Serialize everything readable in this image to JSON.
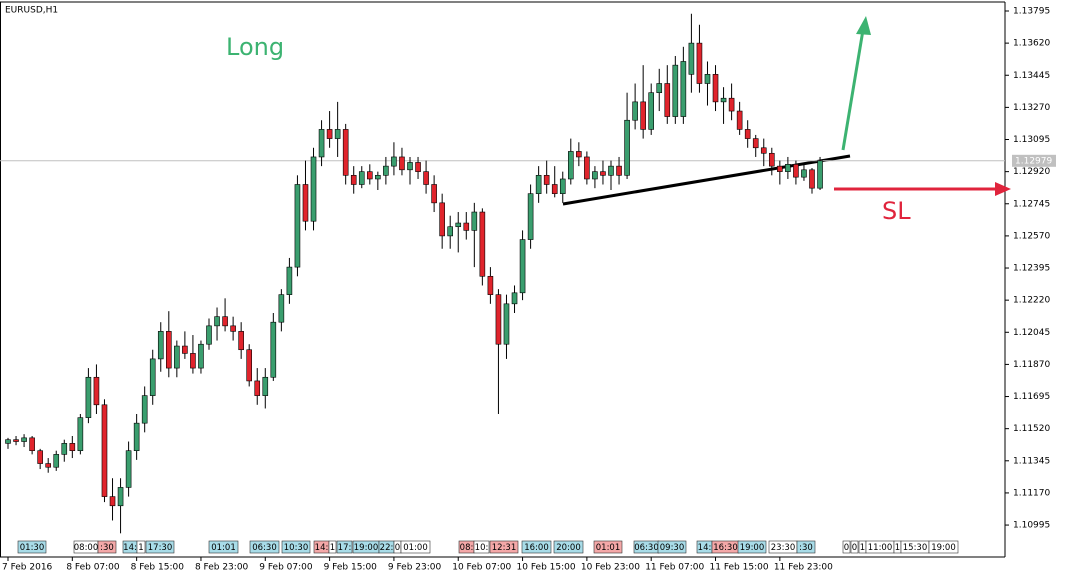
{
  "chart_data": {
    "type": "candlestick",
    "title": "EURUSD,H1",
    "up_color": "#3a9e6e",
    "down_color": "#e0242c",
    "wick_color": "#000000",
    "ylim": [
      1.10821,
      1.13844
    ],
    "yticks": [
      {
        "value": 1.13795,
        "label": "1.13795"
      },
      {
        "value": 1.1362,
        "label": "1.13620"
      },
      {
        "value": 1.13445,
        "label": "1.13445"
      },
      {
        "value": 1.1327,
        "label": "1.13270"
      },
      {
        "value": 1.13095,
        "label": "1.13095"
      },
      {
        "value": 1.1292,
        "label": "1.12920"
      },
      {
        "value": 1.12745,
        "label": "1.12745"
      },
      {
        "value": 1.1257,
        "label": "1.12570"
      },
      {
        "value": 1.12395,
        "label": "1.12395"
      },
      {
        "value": 1.1222,
        "label": "1.12220"
      },
      {
        "value": 1.12045,
        "label": "1.12045"
      },
      {
        "value": 1.1187,
        "label": "1.11870"
      },
      {
        "value": 1.11695,
        "label": "1.11695"
      },
      {
        "value": 1.1152,
        "label": "1.11520"
      },
      {
        "value": 1.11345,
        "label": "1.11345"
      },
      {
        "value": 1.1117,
        "label": "1.11170"
      },
      {
        "value": 1.10995,
        "label": "1.10995"
      }
    ],
    "xticks": [
      {
        "value": 0,
        "label": "7 Feb 2016"
      },
      {
        "value": 8,
        "label": "8 Feb 07:00"
      },
      {
        "value": 16,
        "label": "8 Feb 15:00"
      },
      {
        "value": 24,
        "label": "8 Feb 23:00"
      },
      {
        "value": 32,
        "label": "9 Feb 07:00"
      },
      {
        "value": 40,
        "label": "9 Feb 15:00"
      },
      {
        "value": 48,
        "label": "9 Feb 23:00"
      },
      {
        "value": 56,
        "label": "10 Feb 07:00"
      },
      {
        "value": 64,
        "label": "10 Feb 15:00"
      },
      {
        "value": 72,
        "label": "10 Feb 23:00"
      },
      {
        "value": 80,
        "label": "11 Feb 07:00"
      },
      {
        "value": 88,
        "label": "11 Feb 15:00"
      },
      {
        "value": 96,
        "label": "11 Feb 23:00"
      }
    ],
    "current_price": 1.12979,
    "annotations": [
      {
        "text": "Long",
        "color": "#3cb371"
      },
      {
        "text": "SL",
        "color": "#e0243c"
      }
    ],
    "events": [
      {
        "label": "01:30",
        "color": "#a8dce8"
      },
      {
        "label": "08:00",
        "color": "#ffffff"
      },
      {
        "label": ":30",
        "color": "#f4a8a8"
      },
      {
        "label": "14:",
        "color": "#a8dce8"
      },
      {
        "label": "1",
        "color": "#ffffff"
      },
      {
        "label": "17:30",
        "color": "#a8dce8"
      },
      {
        "label": "01:01",
        "color": "#a8dce8"
      },
      {
        "label": "06:30",
        "color": "#a8dce8"
      },
      {
        "label": "10:30",
        "color": "#a8dce8"
      },
      {
        "label": "14:",
        "color": "#f4a8a8"
      },
      {
        "label": "1",
        "color": "#ffffff"
      },
      {
        "label": "17:",
        "color": "#a8dce8"
      },
      {
        "label": "19:00",
        "color": "#a8dce8"
      },
      {
        "label": "22:",
        "color": "#a8dce8"
      },
      {
        "label": "0",
        "color": "#ffffff"
      },
      {
        "label": "01:00",
        "color": "#ffffff"
      },
      {
        "label": "08:",
        "color": "#f4a8a8"
      },
      {
        "label": "10:",
        "color": "#ffffff"
      },
      {
        "label": "12:31",
        "color": "#f4a8a8"
      },
      {
        "label": "16:00",
        "color": "#a8dce8"
      },
      {
        "label": "20:00",
        "color": "#a8dce8"
      },
      {
        "label": "01:01",
        "color": "#f4a8a8"
      },
      {
        "label": "06:30",
        "color": "#a8dce8"
      },
      {
        "label": "09:30",
        "color": "#a8dce8"
      },
      {
        "label": "14:",
        "color": "#a8dce8"
      },
      {
        "label": "16:30",
        "color": "#f4a8a8"
      },
      {
        "label": "19:00",
        "color": "#a8dce8"
      },
      {
        "label": "23:30",
        "color": "#ffffff"
      },
      {
        "label": ":30",
        "color": "#a8dce8"
      },
      {
        "label": "0",
        "color": "#ffffff"
      },
      {
        "label": "0",
        "color": "#ffffff"
      },
      {
        "label": "1",
        "color": "#ffffff"
      },
      {
        "label": "11:00",
        "color": "#ffffff"
      },
      {
        "label": "1",
        "color": "#ffffff"
      },
      {
        "label": "15:30",
        "color": "#ffffff"
      },
      {
        "label": "19:00",
        "color": "#ffffff"
      }
    ],
    "ohlc": [
      [
        1.1144,
        1.1147,
        1.1141,
        1.1146
      ],
      [
        1.1146,
        1.1148,
        1.1143,
        1.1145
      ],
      [
        1.1145,
        1.1149,
        1.1142,
        1.1147
      ],
      [
        1.1147,
        1.1148,
        1.1138,
        1.114
      ],
      [
        1.114,
        1.1141,
        1.113,
        1.1133
      ],
      [
        1.1133,
        1.1136,
        1.1128,
        1.1131
      ],
      [
        1.1131,
        1.114,
        1.1129,
        1.1138
      ],
      [
        1.1138,
        1.1146,
        1.1134,
        1.1144
      ],
      [
        1.1144,
        1.1148,
        1.1136,
        1.114
      ],
      [
        1.114,
        1.116,
        1.1138,
        1.1158
      ],
      [
        1.1158,
        1.1185,
        1.1155,
        1.118
      ],
      [
        1.118,
        1.1187,
        1.116,
        1.1165
      ],
      [
        1.1165,
        1.1168,
        1.1112,
        1.1115
      ],
      [
        1.1115,
        1.1125,
        1.1102,
        1.111
      ],
      [
        1.111,
        1.1125,
        1.1095,
        1.112
      ],
      [
        1.112,
        1.1145,
        1.1115,
        1.114
      ],
      [
        1.114,
        1.116,
        1.1135,
        1.1155
      ],
      [
        1.1155,
        1.1175,
        1.115,
        1.117
      ],
      [
        1.117,
        1.1195,
        1.1165,
        1.119
      ],
      [
        1.119,
        1.121,
        1.1183,
        1.1205
      ],
      [
        1.1205,
        1.1216,
        1.118,
        1.1185
      ],
      [
        1.1185,
        1.12,
        1.118,
        1.1197
      ],
      [
        1.1197,
        1.1205,
        1.119,
        1.1193
      ],
      [
        1.1193,
        1.1203,
        1.1182,
        1.1185
      ],
      [
        1.1185,
        1.12,
        1.1182,
        1.1198
      ],
      [
        1.1198,
        1.1212,
        1.1195,
        1.1208
      ],
      [
        1.1208,
        1.1218,
        1.12,
        1.1213
      ],
      [
        1.1213,
        1.1223,
        1.1205,
        1.1208
      ],
      [
        1.1208,
        1.1213,
        1.12,
        1.1205
      ],
      [
        1.1205,
        1.121,
        1.119,
        1.1195
      ],
      [
        1.1195,
        1.1198,
        1.1175,
        1.1178
      ],
      [
        1.1178,
        1.1185,
        1.1165,
        1.117
      ],
      [
        1.117,
        1.1185,
        1.1163,
        1.118
      ],
      [
        1.118,
        1.1215,
        1.1178,
        1.121
      ],
      [
        1.121,
        1.1228,
        1.1205,
        1.1225
      ],
      [
        1.1225,
        1.1245,
        1.122,
        1.124
      ],
      [
        1.124,
        1.129,
        1.1235,
        1.1285
      ],
      [
        1.1285,
        1.1298,
        1.126,
        1.1265
      ],
      [
        1.1265,
        1.1305,
        1.126,
        1.13
      ],
      [
        1.13,
        1.132,
        1.1295,
        1.1315
      ],
      [
        1.1315,
        1.1325,
        1.1305,
        1.131
      ],
      [
        1.131,
        1.133,
        1.13,
        1.1315
      ],
      [
        1.1315,
        1.1318,
        1.1285,
        1.129
      ],
      [
        1.129,
        1.1295,
        1.128,
        1.1285
      ],
      [
        1.1285,
        1.1295,
        1.1283,
        1.1292
      ],
      [
        1.1292,
        1.1296,
        1.1285,
        1.1288
      ],
      [
        1.1288,
        1.1292,
        1.1282,
        1.129
      ],
      [
        1.129,
        1.13,
        1.1285,
        1.1295
      ],
      [
        1.1295,
        1.1308,
        1.129,
        1.13
      ],
      [
        1.13,
        1.1305,
        1.129,
        1.1293
      ],
      [
        1.1293,
        1.13,
        1.1285,
        1.1297
      ],
      [
        1.1297,
        1.13,
        1.1288,
        1.1292
      ],
      [
        1.1292,
        1.1298,
        1.128,
        1.1285
      ],
      [
        1.1285,
        1.129,
        1.127,
        1.1275
      ],
      [
        1.1275,
        1.128,
        1.125,
        1.1257
      ],
      [
        1.1257,
        1.1268,
        1.125,
        1.1262
      ],
      [
        1.1262,
        1.127,
        1.1248,
        1.1264
      ],
      [
        1.1264,
        1.127,
        1.1255,
        1.126
      ],
      [
        1.126,
        1.1275,
        1.124,
        1.127
      ],
      [
        1.127,
        1.1272,
        1.123,
        1.1235
      ],
      [
        1.1235,
        1.124,
        1.122,
        1.1225
      ],
      [
        1.1225,
        1.1228,
        1.116,
        1.1198
      ],
      [
        1.1198,
        1.1225,
        1.119,
        1.122
      ],
      [
        1.122,
        1.123,
        1.1215,
        1.1226
      ],
      [
        1.1226,
        1.126,
        1.1222,
        1.1255
      ],
      [
        1.1255,
        1.1285,
        1.125,
        1.128
      ],
      [
        1.128,
        1.1295,
        1.1275,
        1.129
      ],
      [
        1.129,
        1.1298,
        1.128,
        1.1285
      ],
      [
        1.1285,
        1.1295,
        1.1278,
        1.128
      ],
      [
        1.128,
        1.1292,
        1.1275,
        1.1288
      ],
      [
        1.1288,
        1.131,
        1.1285,
        1.1303
      ],
      [
        1.1303,
        1.1308,
        1.1295,
        1.13
      ],
      [
        1.13,
        1.1303,
        1.1285,
        1.1288
      ],
      [
        1.1288,
        1.1295,
        1.1283,
        1.1292
      ],
      [
        1.1292,
        1.1298,
        1.1285,
        1.129
      ],
      [
        1.129,
        1.1298,
        1.1282,
        1.1295
      ],
      [
        1.1295,
        1.13,
        1.1285,
        1.129
      ],
      [
        1.129,
        1.1335,
        1.1288,
        1.132
      ],
      [
        1.132,
        1.134,
        1.1315,
        1.133
      ],
      [
        1.133,
        1.135,
        1.131,
        1.1315
      ],
      [
        1.1315,
        1.134,
        1.1312,
        1.1335
      ],
      [
        1.1335,
        1.1348,
        1.1325,
        1.134
      ],
      [
        1.134,
        1.135,
        1.1318,
        1.1322
      ],
      [
        1.1322,
        1.1355,
        1.1318,
        1.135
      ],
      [
        1.1322,
        1.136,
        1.1318,
        1.1352
      ],
      [
        1.1345,
        1.1378,
        1.1335,
        1.1362
      ],
      [
        1.1362,
        1.1372,
        1.1335,
        1.134
      ],
      [
        1.134,
        1.1352,
        1.1328,
        1.1345
      ],
      [
        1.1345,
        1.135,
        1.1325,
        1.133
      ],
      [
        1.133,
        1.1338,
        1.1318,
        1.1332
      ],
      [
        1.1332,
        1.134,
        1.132,
        1.1325
      ],
      [
        1.1325,
        1.133,
        1.1312,
        1.1315
      ],
      [
        1.1315,
        1.132,
        1.1305,
        1.131
      ],
      [
        1.131,
        1.1312,
        1.13,
        1.1305
      ],
      [
        1.1305,
        1.131,
        1.1295,
        1.1302
      ],
      [
        1.1302,
        1.1305,
        1.129,
        1.1295
      ],
      [
        1.1295,
        1.1298,
        1.1285,
        1.1292
      ],
      [
        1.1292,
        1.13,
        1.1288,
        1.1296
      ],
      [
        1.1296,
        1.1298,
        1.1285,
        1.1289
      ],
      [
        1.1289,
        1.1296,
        1.1287,
        1.1293
      ],
      [
        1.1293,
        1.1294,
        1.128,
        1.1283
      ],
      [
        1.1283,
        1.13,
        1.1282,
        1.12979
      ]
    ]
  }
}
